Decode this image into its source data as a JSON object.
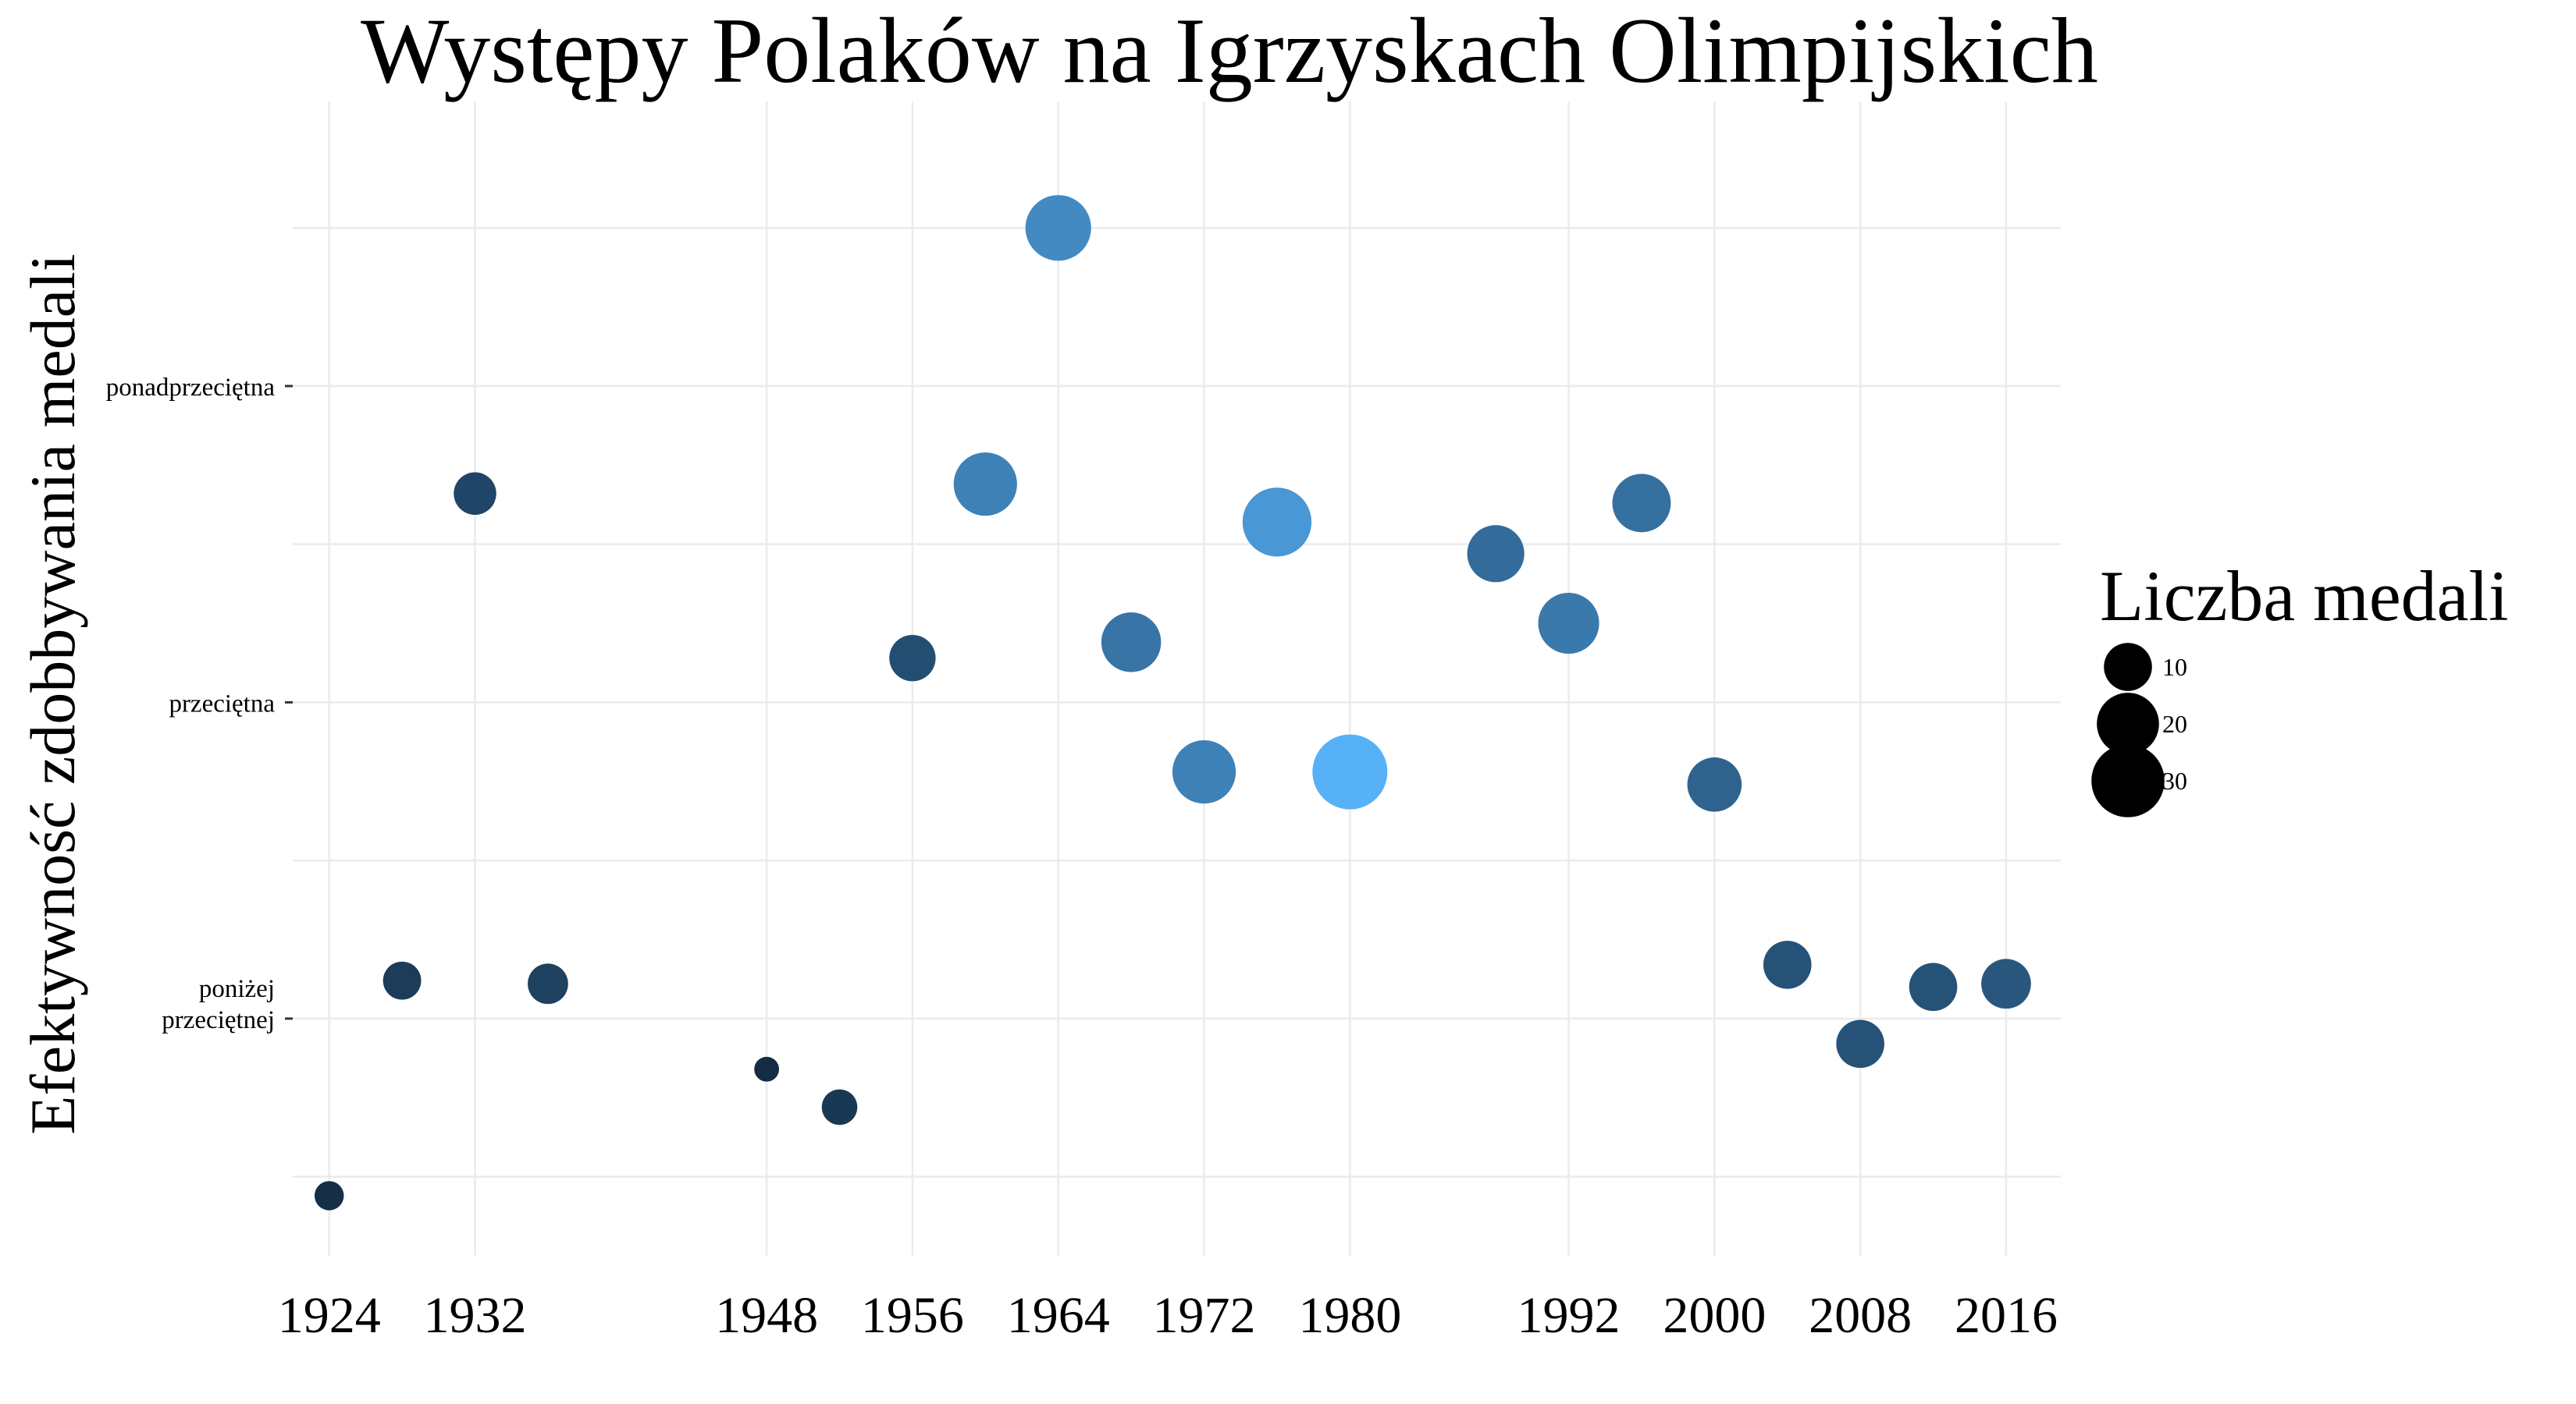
{
  "chart_data": {
    "type": "scatter",
    "title": "Występy Polaków na Igrzyskach Olimpijskich",
    "xlabel": "",
    "ylabel": "Efektywność zdobbywania medali",
    "xlim": [
      1922,
      2019
    ],
    "ylim": [
      -0.75,
      2.9
    ],
    "x_ticks": [
      1924,
      1932,
      1948,
      1956,
      1964,
      1972,
      1980,
      1992,
      2000,
      2008,
      2016
    ],
    "y_ticks": [
      {
        "value": 0,
        "lines": [
          "poniżej",
          "przeciętnej"
        ]
      },
      {
        "value": 1,
        "lines": [
          "przeciętna"
        ]
      },
      {
        "value": 2,
        "lines": [
          "ponadprzeciętna"
        ]
      }
    ],
    "grid": true,
    "legend": {
      "title": "Liczba medali",
      "placement": "right",
      "entries": [
        10,
        20,
        30
      ]
    },
    "points": [
      {
        "x": 1924,
        "y": -0.56,
        "medals": 2
      },
      {
        "x": 1928,
        "y": 0.12,
        "medals": 5
      },
      {
        "x": 1932,
        "y": 1.66,
        "medals": 7
      },
      {
        "x": 1936,
        "y": 0.11,
        "medals": 6
      },
      {
        "x": 1948,
        "y": -0.16,
        "medals": 1
      },
      {
        "x": 1952,
        "y": -0.28,
        "medals": 4
      },
      {
        "x": 1956,
        "y": 1.14,
        "medals": 9
      },
      {
        "x": 1960,
        "y": 1.69,
        "medals": 21
      },
      {
        "x": 1964,
        "y": 2.5,
        "medals": 23
      },
      {
        "x": 1968,
        "y": 1.19,
        "medals": 18
      },
      {
        "x": 1972,
        "y": 0.78,
        "medals": 21
      },
      {
        "x": 1976,
        "y": 1.57,
        "medals": 26
      },
      {
        "x": 1980,
        "y": 0.78,
        "medals": 32
      },
      {
        "x": 1988,
        "y": 1.47,
        "medals": 16
      },
      {
        "x": 1992,
        "y": 1.25,
        "medals": 19
      },
      {
        "x": 1996,
        "y": 1.63,
        "medals": 17
      },
      {
        "x": 2000,
        "y": 0.74,
        "medals": 14
      },
      {
        "x": 2004,
        "y": 0.17,
        "medals": 10
      },
      {
        "x": 2008,
        "y": -0.08,
        "medals": 10
      },
      {
        "x": 2012,
        "y": 0.1,
        "medals": 10
      },
      {
        "x": 2016,
        "y": 0.11,
        "medals": 11
      }
    ],
    "color_scale": {
      "low": "#132b43",
      "high": "#56b1f7"
    }
  }
}
